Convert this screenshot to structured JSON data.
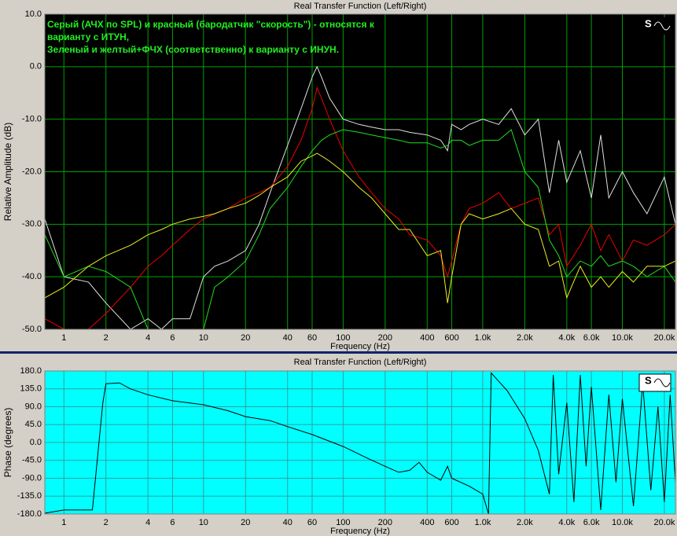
{
  "chart_data": [
    {
      "type": "line",
      "title": "Real Transfer Function (Left/Right)",
      "xlabel": "Frequency (Hz)",
      "ylabel": "Relative Amplitude (dB)",
      "annotation": [
        "Серый (АЧХ по SPL) и красный (бародатчик \"скорость\") - относятся к",
        "варианту с ИТУН,",
        "Зеленый и желтый+ФЧХ (соответственно) к варианту с ИНУН."
      ],
      "xscale": "log",
      "grid": true,
      "background": "#000000",
      "grid_color": "#00a000",
      "annotation_color": "#22ee22",
      "xlim": [
        0.73,
        24000
      ],
      "ylim": [
        -50,
        10
      ],
      "xticks": [
        1,
        2,
        4,
        6,
        10,
        20,
        40,
        60,
        100,
        200,
        400,
        600,
        {
          "value": 1000,
          "label": "1.0k"
        },
        {
          "value": 2000,
          "label": "2.0k"
        },
        {
          "value": 4000,
          "label": "4.0k"
        },
        {
          "value": 6000,
          "label": "6.0k"
        },
        {
          "value": 10000,
          "label": "10.0k"
        },
        {
          "value": 20000,
          "label": "20.0k"
        }
      ],
      "yticks": [
        {
          "value": 10,
          "label": "10.0"
        },
        {
          "value": 0,
          "label": "0.0"
        },
        {
          "value": -10,
          "label": "-10.0"
        },
        {
          "value": -20,
          "label": "-20.0"
        },
        {
          "value": -30,
          "label": "-30.0"
        },
        {
          "value": -40,
          "label": "-40.0"
        },
        {
          "value": -50,
          "label": "-50.0"
        }
      ],
      "x": [
        0.73,
        1,
        1.5,
        2,
        3,
        4,
        5,
        6,
        8,
        10,
        12,
        15,
        20,
        25,
        30,
        40,
        50,
        60,
        65,
        70,
        80,
        100,
        130,
        160,
        200,
        250,
        300,
        400,
        500,
        560,
        600,
        700,
        800,
        1000,
        1300,
        1600,
        2000,
        2500,
        3000,
        3500,
        4000,
        5000,
        6000,
        7000,
        8000,
        10000,
        12000,
        15000,
        20000,
        24000
      ],
      "series": [
        {
          "color": "#e0e0e0",
          "values": [
            -29,
            -40,
            -41,
            -45,
            -50,
            -48,
            -50,
            -48,
            -48,
            -40,
            -38,
            -37,
            -35,
            -30,
            -24,
            -15,
            -8,
            -2,
            0,
            -2,
            -6,
            -10,
            -11,
            -11.5,
            -12,
            -12,
            -12.5,
            -13,
            -14,
            -16,
            -11,
            -12,
            -11,
            -10,
            -11,
            -8,
            -13,
            -10,
            -24,
            -14,
            -22,
            -16,
            -25,
            -13,
            -25,
            -20,
            -24,
            -28,
            -21,
            -30
          ]
        },
        {
          "color": "#ee0000",
          "values": [
            -48,
            -50,
            -50,
            -47,
            -42,
            -38,
            -36,
            -34,
            -31,
            -29,
            -28,
            -27,
            -25,
            -24,
            -23,
            -19,
            -14,
            -8,
            -4,
            -6,
            -10,
            -16,
            -21,
            -24,
            -27,
            -29,
            -32,
            -33,
            -36,
            -40,
            -37,
            -30,
            -27,
            -26,
            -24,
            -27,
            -26,
            -25,
            -32,
            -30,
            -38,
            -34,
            -30,
            -35,
            -32,
            -37,
            -33,
            -34,
            -32,
            -30
          ]
        },
        {
          "color": "#22dd22",
          "values": [
            -32,
            -40,
            -38,
            -39,
            -42,
            -50,
            -50,
            -50,
            -50,
            -50,
            -42,
            -40,
            -37,
            -32,
            -27,
            -23,
            -19,
            -16,
            -15,
            -14,
            -13,
            -12,
            -12.5,
            -13,
            -13.5,
            -14,
            -14.5,
            -14.5,
            -15.5,
            -15,
            -14,
            -14,
            -15,
            -14,
            -14,
            -12,
            -20,
            -23,
            -33,
            -36,
            -40,
            -37,
            -38,
            -36,
            -38,
            -37,
            -38,
            -40,
            -38,
            -41
          ]
        },
        {
          "color": "#eeee22",
          "values": [
            -44,
            -42,
            -38,
            -36,
            -34,
            -32,
            -31,
            -30,
            -29,
            -28.5,
            -28,
            -27,
            -26,
            -24.5,
            -23,
            -21,
            -18,
            -17,
            -16.5,
            -17,
            -18,
            -20,
            -23,
            -25,
            -28,
            -31,
            -31,
            -36,
            -35,
            -45,
            -40,
            -30,
            -28,
            -29,
            -28,
            -27,
            -30,
            -31,
            -38,
            -37,
            -44,
            -38,
            -42,
            -40,
            -42,
            -39,
            -41,
            -38,
            -38,
            -37
          ]
        }
      ]
    },
    {
      "type": "line",
      "title": "Real Transfer Function (Left/Right)",
      "xlabel": "Frequency (Hz)",
      "ylabel": "Phase (degrees)",
      "xscale": "log",
      "grid": true,
      "background": "#00ffff",
      "grid_color": "#30a0a0",
      "xlim": [
        0.73,
        24000
      ],
      "ylim": [
        -180,
        180
      ],
      "xticks": [
        1,
        2,
        4,
        6,
        10,
        20,
        40,
        60,
        100,
        200,
        400,
        600,
        {
          "value": 1000,
          "label": "1.0k"
        },
        {
          "value": 2000,
          "label": "2.0k"
        },
        {
          "value": 4000,
          "label": "4.0k"
        },
        {
          "value": 6000,
          "label": "6.0k"
        },
        {
          "value": 10000,
          "label": "10.0k"
        },
        {
          "value": 20000,
          "label": "20.0k"
        }
      ],
      "yticks": [
        {
          "value": 180,
          "label": "180.0"
        },
        {
          "value": 135,
          "label": "135.0"
        },
        {
          "value": 90,
          "label": "90.0"
        },
        {
          "value": 45,
          "label": "45.0"
        },
        {
          "value": 0,
          "label": "0.0"
        },
        {
          "value": -45,
          "label": "-45.0"
        },
        {
          "value": -90,
          "label": "-90.0"
        },
        {
          "value": -135,
          "label": "-135.0"
        },
        {
          "value": -180,
          "label": "-180.0"
        }
      ],
      "x": [
        0.73,
        1,
        1.6,
        1.9,
        2,
        2.5,
        3,
        4,
        6,
        10,
        15,
        20,
        30,
        40,
        60,
        100,
        150,
        200,
        250,
        300,
        350,
        400,
        500,
        560,
        600,
        800,
        1000,
        1100,
        1150,
        1500,
        2000,
        2500,
        3000,
        3200,
        3500,
        4000,
        4500,
        5000,
        5500,
        6000,
        7000,
        8000,
        9000,
        10000,
        12000,
        14000,
        16000,
        18000,
        20000,
        22000,
        24000
      ],
      "series": [
        {
          "color": "#000000",
          "values": [
            -178,
            -170,
            -170,
            100,
            148,
            150,
            135,
            120,
            105,
            95,
            80,
            65,
            55,
            40,
            20,
            -10,
            -40,
            -60,
            -75,
            -70,
            -50,
            -75,
            -95,
            -60,
            -90,
            -110,
            -130,
            -180,
            175,
            130,
            60,
            -20,
            -130,
            170,
            -80,
            100,
            -150,
            170,
            -60,
            140,
            -170,
            120,
            -100,
            110,
            -160,
            150,
            -120,
            90,
            -150,
            120,
            -100
          ]
        }
      ]
    }
  ]
}
